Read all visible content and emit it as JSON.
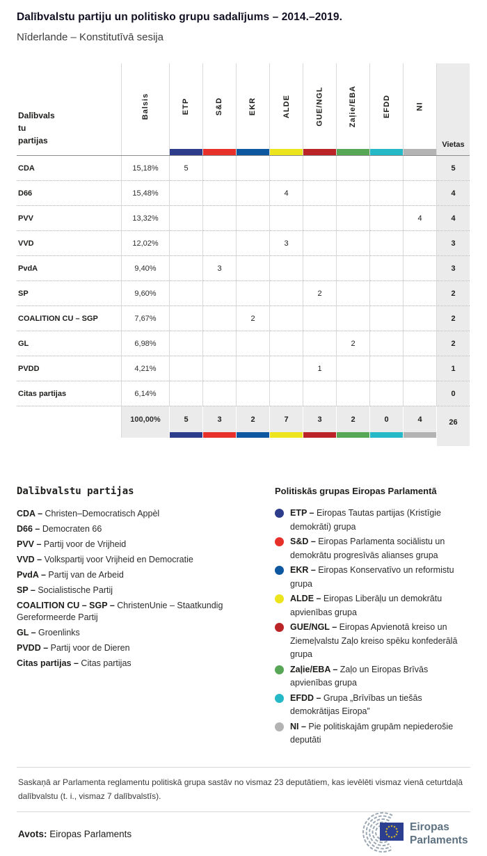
{
  "chart_data": {
    "type": "table",
    "title": "Dalībvalstu partiju un politisko grupu sadalījums – 2014.–2019.",
    "subtitle": "Nīderlande – Konstitutīvā sesija",
    "corner": [
      "Dalībvals",
      "tu",
      "partijas"
    ],
    "votes_col": "Balsis",
    "seats_col": "Vietas",
    "groups": [
      {
        "id": "ETP",
        "color": "#2d3d8b"
      },
      {
        "id": "S&D",
        "color": "#e8302a"
      },
      {
        "id": "EKR",
        "color": "#0d56a0"
      },
      {
        "id": "ALDE",
        "color": "#ece41c"
      },
      {
        "id": "GUE/NGL",
        "color": "#bb2427"
      },
      {
        "id": "Zaļie/EBA",
        "color": "#57a757"
      },
      {
        "id": "EFDD",
        "color": "#25b8c6"
      },
      {
        "id": "NI",
        "color": "#b3b3b3"
      }
    ],
    "rows": [
      {
        "party": "CDA",
        "votes": "15,18%",
        "values": [
          "5",
          "",
          "",
          "",
          "",
          "",
          "",
          ""
        ],
        "seats": "5"
      },
      {
        "party": "D66",
        "votes": "15,48%",
        "values": [
          "",
          "",
          "",
          "4",
          "",
          "",
          "",
          ""
        ],
        "seats": "4"
      },
      {
        "party": "PVV",
        "votes": "13,32%",
        "values": [
          "",
          "",
          "",
          "",
          "",
          "",
          "",
          "4"
        ],
        "seats": "4"
      },
      {
        "party": "VVD",
        "votes": "12,02%",
        "values": [
          "",
          "",
          "",
          "3",
          "",
          "",
          "",
          ""
        ],
        "seats": "3"
      },
      {
        "party": "PvdA",
        "votes": "9,40%",
        "values": [
          "",
          "3",
          "",
          "",
          "",
          "",
          "",
          ""
        ],
        "seats": "3"
      },
      {
        "party": "SP",
        "votes": "9,60%",
        "values": [
          "",
          "",
          "",
          "",
          "2",
          "",
          "",
          ""
        ],
        "seats": "2"
      },
      {
        "party": "COALITION CU – SGP",
        "votes": "7,67%",
        "values": [
          "",
          "",
          "2",
          "",
          "",
          "",
          "",
          ""
        ],
        "seats": "2"
      },
      {
        "party": "GL",
        "votes": "6,98%",
        "values": [
          "",
          "",
          "",
          "",
          "",
          "2",
          "",
          ""
        ],
        "seats": "2"
      },
      {
        "party": "PVDD",
        "votes": "4,21%",
        "values": [
          "",
          "",
          "",
          "",
          "1",
          "",
          "",
          ""
        ],
        "seats": "1"
      },
      {
        "party": "Citas partijas",
        "votes": "6,14%",
        "values": [
          "",
          "",
          "",
          "",
          "",
          "",
          "",
          ""
        ],
        "seats": "0"
      }
    ],
    "total": {
      "votes": "100,00%",
      "values": [
        "5",
        "3",
        "2",
        "7",
        "3",
        "2",
        "0",
        "4"
      ],
      "seats": "26"
    }
  },
  "party_legend": {
    "heading": "Dalībvalstu partijas",
    "items": [
      {
        "abbr": "CDA",
        "name": "Christen–Democratisch Appèl"
      },
      {
        "abbr": "D66",
        "name": "Democraten 66"
      },
      {
        "abbr": "PVV",
        "name": "Partij voor de Vrijheid"
      },
      {
        "abbr": "VVD",
        "name": "Volkspartij voor Vrijheid en Democratie"
      },
      {
        "abbr": "PvdA",
        "name": "Partij van de Arbeid"
      },
      {
        "abbr": "SP",
        "name": "Socialistische Partij"
      },
      {
        "abbr": "COALITION CU – SGP",
        "name": "ChristenUnie – Staatkundig Gereformeerde Partij"
      },
      {
        "abbr": "GL",
        "name": "Groenlinks"
      },
      {
        "abbr": "PVDD",
        "name": "Partij voor de Dieren"
      },
      {
        "abbr": "Citas partijas",
        "name": "Citas partijas"
      }
    ]
  },
  "group_legend": {
    "heading": "Politiskās grupas Eiropas Parlamentā",
    "items": [
      {
        "abbr": "ETP",
        "color": "#2d3d8b",
        "name": "Eiropas Tautas partijas (Kristīgie demokrāti) grupa"
      },
      {
        "abbr": "S&D",
        "color": "#e8302a",
        "name": "Eiropas Parlamenta sociālistu un demokrātu progresīvās alianses grupa"
      },
      {
        "abbr": "EKR",
        "color": "#0d56a0",
        "name": "Eiropas Konservatīvo un reformistu grupa"
      },
      {
        "abbr": "ALDE",
        "color": "#ece41c",
        "name": "Eiropas Liberāļu un demokrātu apvienības grupa"
      },
      {
        "abbr": "GUE/NGL",
        "color": "#bb2427",
        "name": "Eiropas Apvienotā kreiso un Ziemeļvalstu Zaļo kreiso spēku konfederālā grupa"
      },
      {
        "abbr": "Zaļie/EBA",
        "color": "#57a757",
        "name": "Zaļo un Eiropas Brīvās apvienības grupa"
      },
      {
        "abbr": "EFDD",
        "color": "#25b8c6",
        "name": "Grupa „Brīvības un tiešās demokrātijas Eiropa”"
      },
      {
        "abbr": "NI",
        "color": "#b3b3b3",
        "name": "Pie politiskajām grupām nepiederošie deputāti"
      }
    ]
  },
  "footnote": "Saskaņā ar Parlamenta reglamentu politiskā grupa sastāv no vismaz 23 deputātiem, kas ievēlēti vismaz vienā ceturtdaļā dalībvalstu (t. i., vismaz 7 dalībvalstīs).",
  "source": {
    "label": "Avots:",
    "value": "Eiropas Parlaments"
  },
  "logo": {
    "line1": "Eiropas",
    "line2": "Parlaments"
  }
}
